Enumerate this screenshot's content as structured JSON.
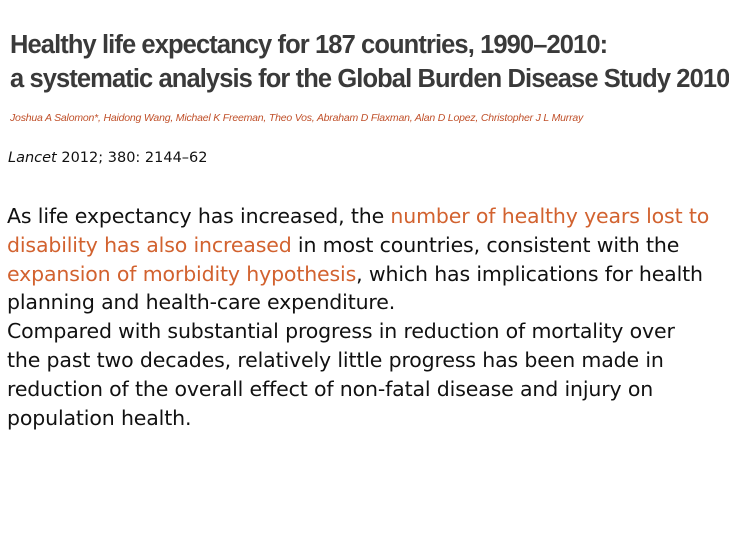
{
  "title": {
    "line1": "Healthy life expectancy for 187 countries, 1990–2010:",
    "line2": "a systematic analysis for the Global Burden Disease Study 2010"
  },
  "authors": "Joshua A Salomon*, Haidong Wang, Michael K Freeman, Theo Vos, Abraham D Flaxman, Alan D Lopez, Christopher J L Murray",
  "citation": {
    "journal": "Lancet",
    "details": " 2012; 380: 2144–62"
  },
  "paragraph1": {
    "t1": "As life expectancy has increased, the ",
    "h1": "number of healthy years lost to disability has also increased",
    "t2": " in most countries, consistent with the ",
    "h2": "expansion of morbidity hypothesis",
    "t3": ", which has implications for health planning and health-care expenditure."
  },
  "paragraph2": "Compared with substantial progress in reduction of mortality over the past two decades, relatively little progress has been made in reduction of the overall effect of non-fatal disease and injury on population health.",
  "colors": {
    "highlight": "#d2622f",
    "authors": "#c0502a",
    "title": "#3a3a3a"
  }
}
